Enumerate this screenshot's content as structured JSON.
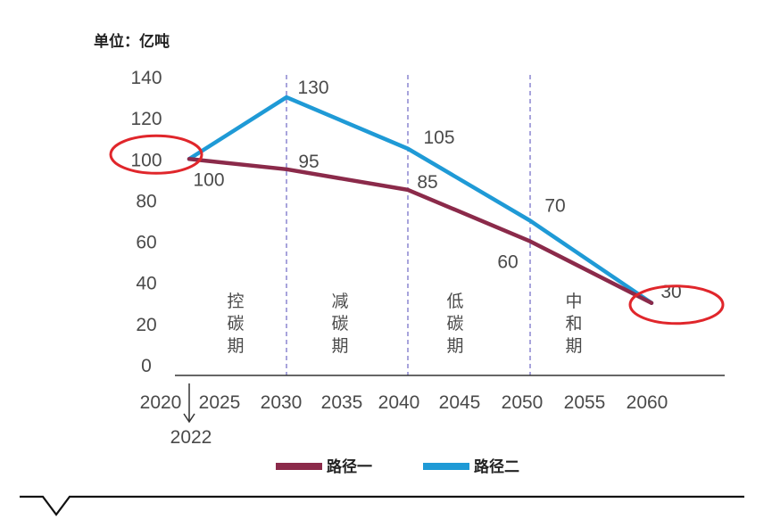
{
  "chart_data": {
    "type": "line",
    "unit_label": "单位：亿吨",
    "y_ticks": [
      "0",
      "20",
      "40",
      "60",
      "80",
      "100",
      "120",
      "140"
    ],
    "x_ticks": [
      "2020",
      "2025",
      "2030",
      "2035",
      "2040",
      "2045",
      "2050",
      "2055",
      "2060"
    ],
    "x_extra_label": "2022",
    "ylim": [
      0,
      140
    ],
    "phases": [
      {
        "label": "控碳期",
        "from": 2022,
        "to": 2030
      },
      {
        "label": "减碳期",
        "from": 2030,
        "to": 2040
      },
      {
        "label": "低碳期",
        "from": 2040,
        "to": 2050
      },
      {
        "label": "中和期",
        "from": 2050,
        "to": 2060
      }
    ],
    "series": [
      {
        "name": "路径一",
        "color": "#8b2a4a",
        "x": [
          2022,
          2030,
          2040,
          2050,
          2060
        ],
        "values": [
          100,
          95,
          85,
          60,
          30
        ],
        "labels": [
          "100",
          "95",
          "85",
          "60",
          "30"
        ]
      },
      {
        "name": "路径二",
        "color": "#1f9ad6",
        "x": [
          2022,
          2030,
          2040,
          2050,
          2060
        ],
        "values": [
          100,
          130,
          105,
          70,
          30
        ],
        "labels": [
          "",
          "130",
          "105",
          "70",
          ""
        ]
      }
    ],
    "highlight_color": "#e0262b",
    "divider_color": "#7a73c9"
  }
}
